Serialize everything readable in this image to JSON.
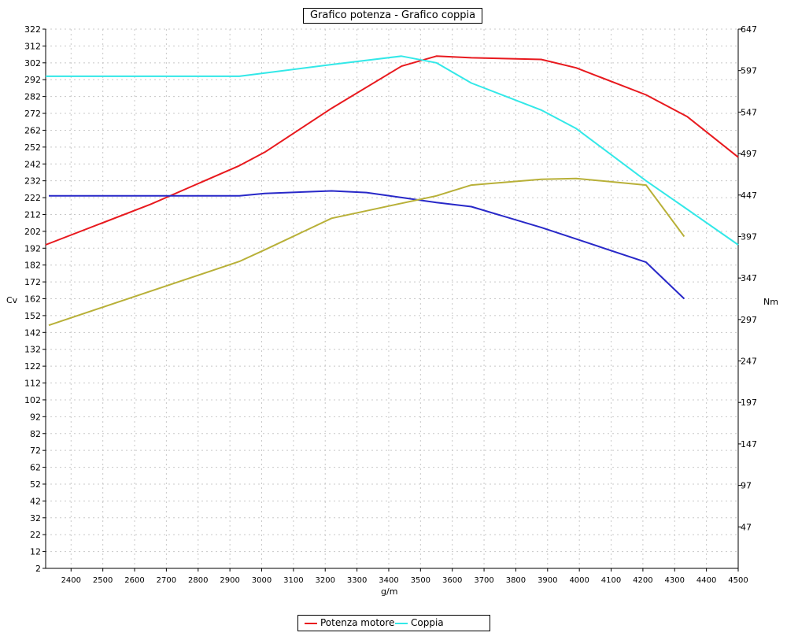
{
  "chart_data": {
    "type": "line",
    "title": "Grafico potenza - Grafico coppia",
    "xlabel": "g/m",
    "ylabel_left": "Cv",
    "ylabel_right": "Nm",
    "xlim": [
      2320,
      4500
    ],
    "ylim_left": [
      2,
      322
    ],
    "ylim_right": [
      -3,
      647
    ],
    "x_ticks": [
      2400,
      2500,
      2600,
      2700,
      2800,
      2900,
      3000,
      3100,
      3200,
      3300,
      3400,
      3500,
      3600,
      3700,
      3800,
      3900,
      4000,
      4100,
      4200,
      4300,
      4400,
      4500
    ],
    "y_ticks_left": [
      2,
      12,
      22,
      32,
      42,
      52,
      62,
      72,
      82,
      92,
      102,
      112,
      122,
      132,
      142,
      152,
      162,
      172,
      182,
      192,
      202,
      212,
      222,
      232,
      242,
      252,
      262,
      272,
      282,
      292,
      302,
      312,
      322
    ],
    "y_ticks_right": [
      47,
      97,
      147,
      197,
      247,
      297,
      347,
      397,
      447,
      497,
      547,
      597,
      647
    ],
    "grid": true,
    "legend_position": "bottom-center",
    "series": [
      {
        "name": "Potenza motore",
        "axis": "left",
        "color": "#e8191e",
        "x": [
          2320,
          2650,
          2930,
          3010,
          3220,
          3440,
          3550,
          3660,
          3880,
          3990,
          4210,
          4340,
          4500
        ],
        "y": [
          194,
          218,
          241,
          249,
          275,
          300,
          306,
          305,
          304,
          299,
          283,
          270,
          246
        ]
      },
      {
        "name": "Coppia",
        "axis": "left",
        "color": "#33e8e8",
        "x": [
          2320,
          2930,
          3010,
          3220,
          3440,
          3550,
          3660,
          3880,
          3990,
          4210,
          4340,
          4500
        ],
        "y": [
          294,
          294,
          296,
          301,
          306,
          302,
          290,
          274,
          263,
          232,
          215,
          194
        ]
      },
      {
        "axis": "right",
        "color": "#2828c8",
        "x": [
          2330,
          2930,
          3010,
          3220,
          3330,
          3440,
          3550,
          3660,
          3880,
          3990,
          4210,
          4330
        ],
        "y": [
          446,
          446,
          449,
          452,
          450,
          444,
          438,
          433,
          408,
          394,
          366,
          322
        ]
      },
      {
        "axis": "right",
        "color": "#b8b038",
        "x": [
          2330,
          2930,
          3010,
          3220,
          3330,
          3440,
          3550,
          3660,
          3880,
          3990,
          4210,
          4330
        ],
        "y": [
          290,
          367,
          381,
          419,
          428,
          437,
          446,
          459,
          466,
          467,
          459,
          397
        ]
      }
    ]
  }
}
